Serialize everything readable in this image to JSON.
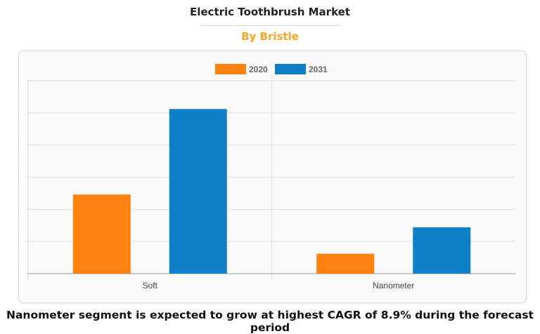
{
  "header": {
    "title": "Electric Toothbrush Market",
    "subtitle": "By Bristle"
  },
  "footer": {
    "caption": "Nanometer segment is expected to grow at highest CAGR of 8.9% during the forecast period"
  },
  "chart_data": {
    "type": "bar",
    "categories": [
      "Soft",
      "Nanometer"
    ],
    "series": [
      {
        "name": "2020",
        "color": "#ff8213",
        "values": [
          2.46,
          0.62
        ]
      },
      {
        "name": "2031",
        "color": "#0f80c8",
        "values": [
          5.12,
          1.44
        ]
      }
    ],
    "ylim": [
      0,
      6
    ],
    "y_tick_labels_shown": false,
    "grid": true,
    "legend": "top-center",
    "xlabel": "",
    "ylabel": ""
  }
}
